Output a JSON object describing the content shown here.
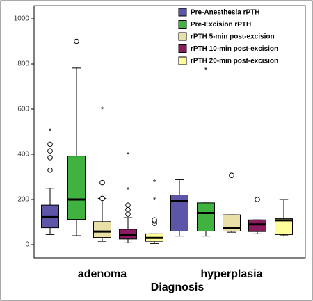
{
  "chart_data": {
    "type": "boxplot",
    "xlabel": "Diagnosis",
    "ylabel": "",
    "ylim": [
      0,
      1000
    ],
    "yticks": [
      0,
      200,
      400,
      600,
      800,
      1000
    ],
    "grid": false,
    "legend_position": "top-right",
    "categories": [
      "adenoma",
      "hyperplasia"
    ],
    "series": [
      {
        "name": "Pre-Anesthesia rPTH",
        "color": "#5d55a8",
        "boxes": [
          {
            "min": 45,
            "q1": 75,
            "median": 122,
            "q3": 175,
            "max": 250,
            "outliers": [
              330,
              385,
              415,
              445
            ],
            "extremes": [
              505
            ]
          },
          {
            "min": 38,
            "q1": 60,
            "median": 195,
            "q3": 220,
            "max": 288,
            "outliers": [],
            "extremes": []
          }
        ]
      },
      {
        "name": "Pre-Excision rPTH",
        "color": "#3fb23f",
        "boxes": [
          {
            "min": 40,
            "q1": 112,
            "median": 200,
            "q3": 392,
            "max": 782,
            "outliers": [
              900
            ],
            "extremes": []
          },
          {
            "min": 38,
            "q1": 60,
            "median": 140,
            "q3": 185,
            "max": 185,
            "outliers": [],
            "extremes": [
              775
            ]
          }
        ]
      },
      {
        "name": "rPTH 5-min post-excision",
        "color": "#e8e0a6",
        "boxes": [
          {
            "min": 15,
            "q1": 32,
            "median": 58,
            "q3": 102,
            "max": 205,
            "outliers": [
              205,
              275
            ],
            "extremes": [
              600
            ]
          },
          {
            "min": 55,
            "q1": 60,
            "median": 75,
            "q3": 132,
            "max": 132,
            "outliers": [
              307
            ],
            "extremes": []
          }
        ]
      },
      {
        "name": "rPTH 10-min post-excision",
        "color": "#8c1a5e",
        "boxes": [
          {
            "min": 8,
            "q1": 25,
            "median": 42,
            "q3": 68,
            "max": 120,
            "outliers": [
              135,
              155,
              175
            ],
            "extremes": [
              245,
              400
            ]
          },
          {
            "min": 48,
            "q1": 58,
            "median": 90,
            "q3": 110,
            "max": 110,
            "outliers": [
              200
            ],
            "extremes": []
          }
        ]
      },
      {
        "name": "rPTH 20-min post-excision",
        "color": "#ffff99",
        "boxes": [
          {
            "min": 5,
            "q1": 15,
            "median": 30,
            "q3": 48,
            "max": 48,
            "outliers": [
              95,
              105,
              110
            ],
            "extremes": [
              200,
              278
            ]
          },
          {
            "min": 40,
            "q1": 45,
            "median": 108,
            "q3": 115,
            "max": 200,
            "outliers": [],
            "extremes": []
          }
        ]
      }
    ]
  }
}
